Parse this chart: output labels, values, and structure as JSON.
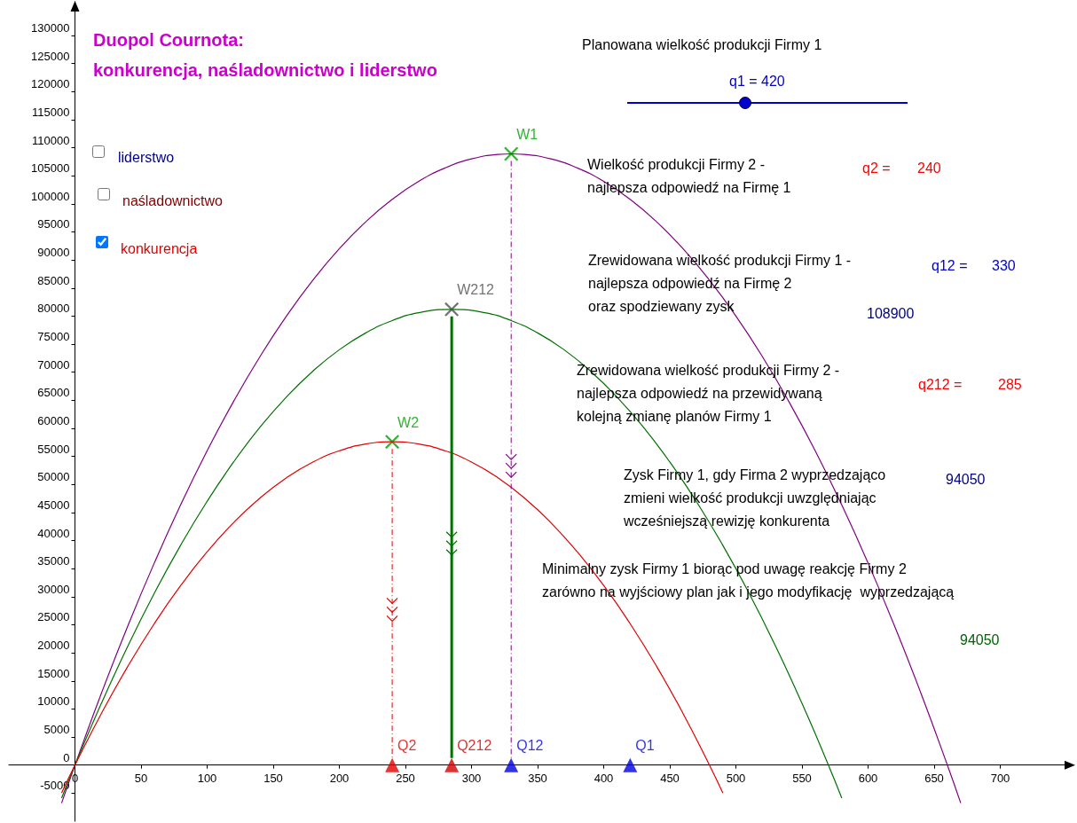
{
  "chart_data": {
    "type": "line",
    "title": "Duopol Cournota:",
    "subtitle": "konkurencja, naśladownictwo i liderstwo",
    "xlim": [
      -50,
      750
    ],
    "xticks": [
      0,
      50,
      100,
      150,
      200,
      250,
      300,
      350,
      400,
      450,
      500,
      550,
      600,
      650,
      700
    ],
    "ylim": [
      -10000,
      136000
    ],
    "yticks": [
      -5000,
      0,
      5000,
      10000,
      15000,
      20000,
      25000,
      30000,
      35000,
      40000,
      45000,
      50000,
      55000,
      60000,
      65000,
      70000,
      75000,
      80000,
      85000,
      90000,
      95000,
      100000,
      105000,
      110000,
      115000,
      120000,
      125000,
      130000
    ],
    "legend": false,
    "marker": "none",
    "series": [
      {
        "color": "#800080",
        "x": [
          -10,
          0,
          20,
          40,
          60,
          80,
          100,
          120,
          140,
          160,
          180,
          200,
          220,
          240,
          260,
          280,
          300,
          320,
          330,
          340,
          360,
          380,
          400,
          420,
          440,
          460,
          480,
          500,
          520,
          540,
          560,
          580,
          600,
          620,
          640,
          660,
          670
        ],
        "values": [
          -6700,
          0,
          12800,
          24800,
          36000,
          46400,
          56000,
          64800,
          72800,
          80000,
          86400,
          92000,
          96800,
          100800,
          104000,
          106400,
          108000,
          108800,
          108900,
          108800,
          108000,
          106400,
          104000,
          100800,
          96800,
          92000,
          86400,
          80000,
          72800,
          64800,
          56000,
          46400,
          36000,
          24800,
          12800,
          0,
          -6700
        ]
      },
      {
        "color": "#007000",
        "x": [
          -10,
          0,
          20,
          40,
          60,
          80,
          100,
          120,
          140,
          160,
          180,
          200,
          220,
          240,
          260,
          285,
          310,
          330,
          350,
          370,
          390,
          410,
          430,
          450,
          470,
          490,
          510,
          530,
          550,
          570,
          580
        ],
        "values": [
          -5800,
          0,
          11000,
          21200,
          30600,
          39200,
          47000,
          54000,
          60200,
          65600,
          70200,
          74000,
          77000,
          79200,
          80600,
          81200,
          80600,
          79200,
          77000,
          74000,
          70200,
          65600,
          60200,
          54000,
          47000,
          39200,
          30600,
          21200,
          11000,
          0,
          -5800
        ]
      },
      {
        "color": "#e00000",
        "x": [
          -10,
          0,
          20,
          40,
          60,
          80,
          100,
          120,
          140,
          160,
          180,
          200,
          220,
          240,
          260,
          280,
          300,
          320,
          340,
          360,
          380,
          400,
          420,
          440,
          460,
          480,
          490
        ],
        "values": [
          -4900,
          0,
          9200,
          17600,
          25200,
          32000,
          38000,
          43200,
          47600,
          51200,
          54000,
          56000,
          57200,
          57600,
          57200,
          56000,
          54000,
          51200,
          47600,
          43200,
          38000,
          32000,
          25200,
          17600,
          9200,
          0,
          -4900
        ]
      },
      {
        "type": "scatter",
        "name": "W1",
        "marker": "cross",
        "color": "#00a000",
        "x": [
          330
        ],
        "values": [
          108900
        ]
      },
      {
        "type": "scatter",
        "name": "W212",
        "marker": "cross",
        "color": "#505050",
        "x": [
          285
        ],
        "values": [
          81200
        ]
      },
      {
        "type": "scatter",
        "name": "W2",
        "marker": "cross",
        "color": "#00a000",
        "x": [
          240
        ],
        "values": [
          57600
        ]
      },
      {
        "type": "scatter",
        "name": "Q2",
        "marker": "triangle",
        "color": "#e00000",
        "x": [
          240
        ],
        "values": [
          0
        ]
      },
      {
        "type": "scatter",
        "name": "Q212",
        "marker": "triangle",
        "color": "#d00000",
        "x": [
          285
        ],
        "values": [
          0
        ]
      },
      {
        "type": "scatter",
        "name": "Q12",
        "marker": "triangle",
        "color": "#0000e0",
        "x": [
          330
        ],
        "values": [
          0
        ]
      },
      {
        "type": "scatter",
        "name": "Q1",
        "marker": "triangle",
        "color": "#0000e0",
        "x": [
          420
        ],
        "values": [
          0
        ]
      }
    ],
    "annotations": [
      "Planowana wielkość produkcji Firmy 1",
      "q1 = 420",
      "liderstwo",
      "naśladownictwo",
      "konkurencja",
      "Wielkość produkcji Firmy 2 -\nnajlepsza odpowiedź na Firmę 1",
      "q2 =",
      "240",
      "Zrewidowana wielkość produkcji Firmy 1 -\nnajlepsza odpowiedź na Firmę 2\noraz spodziewany zysk",
      "q12 =",
      "330",
      "108900",
      "Zrewidowana wielkość produkcji Firmy 2 -\nnajlepsza odpowiedź na przewidywaną\nkolejną zmianę planów Firmy 1",
      "q212 =",
      "285",
      "Zysk Firmy 1, gdy Firma 2 wyprzedzająco\nzmieni wielkość produkcji uwzględniając\nwcześniejszą rewizję konkurenta",
      "94050",
      "Minimalny zysk Firmy 1 biorąc pod uwagę reakcję Firmy 2\nzarówno na wyjściowy plan jak i jego modyfikację  wyprzedzającą",
      "94050"
    ]
  }
}
